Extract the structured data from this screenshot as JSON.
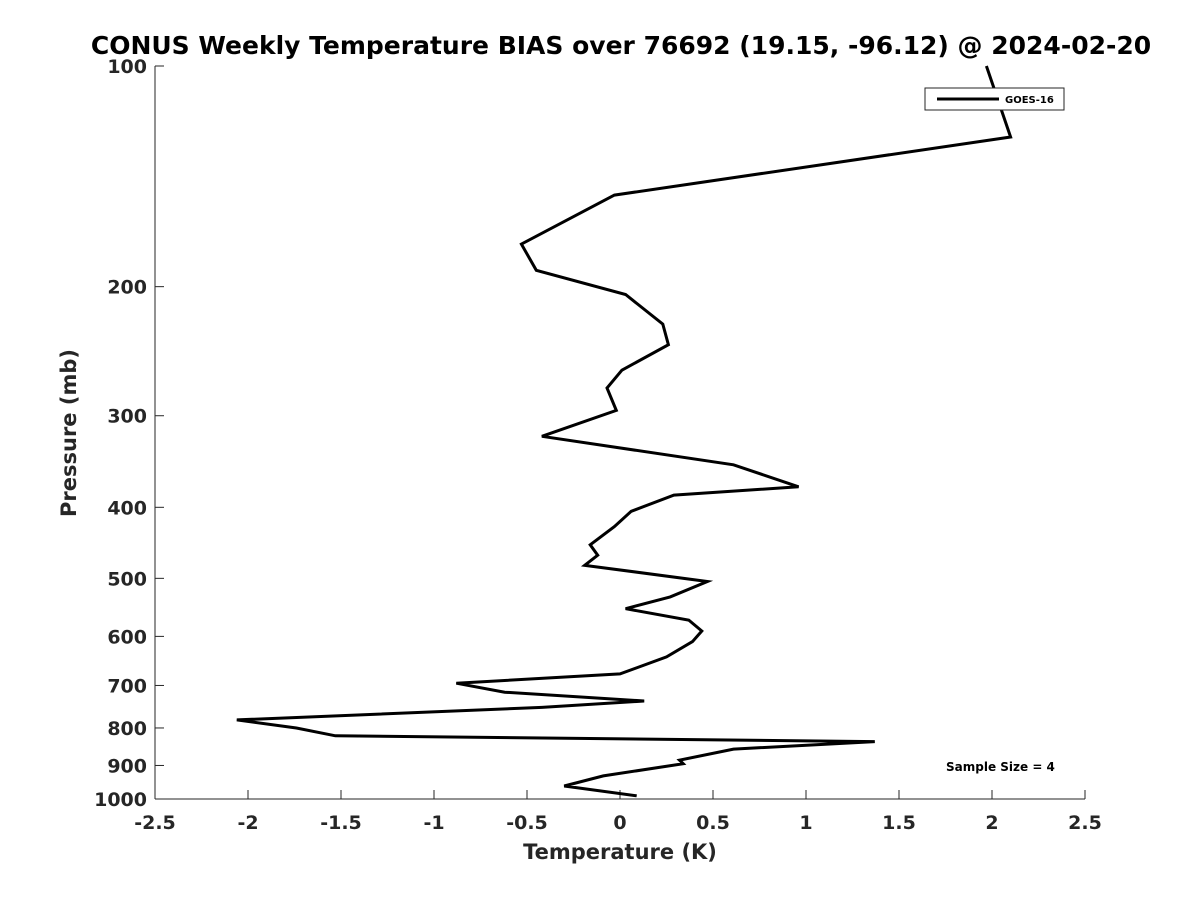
{
  "chart_data": {
    "type": "line",
    "title": "CONUS Weekly Temperature BIAS over 76692 (19.15, -96.12) @ 2024-02-20",
    "xlabel": "Temperature (K)",
    "ylabel": "Pressure (mb)",
    "xlim": [
      -2.5,
      2.5
    ],
    "ylim": [
      100,
      1000
    ],
    "y_scale": "log",
    "y_reversed": true,
    "grid": false,
    "legend_position": "top-right",
    "x_ticks": [
      "-2.5",
      "-2",
      "-1.5",
      "-1",
      "-0.5",
      "0",
      "0.5",
      "1",
      "1.5",
      "2",
      "2.5"
    ],
    "y_ticks": [
      "100",
      "200",
      "300",
      "400",
      "500",
      "600",
      "700",
      "800",
      "900",
      "1000"
    ],
    "annotation": "Sample Size = 4",
    "series": [
      {
        "name": "GOES-16",
        "color": "#000000",
        "x": [
          1.97,
          2.1,
          -0.03,
          -0.53,
          -0.45,
          0.03,
          0.23,
          0.26,
          0.01,
          -0.07,
          -0.02,
          -0.42,
          0.61,
          0.96,
          0.29,
          0.06,
          -0.03,
          -0.16,
          -0.12,
          -0.19,
          0.47,
          0.27,
          0.03,
          0.37,
          0.44,
          0.39,
          0.25,
          0.0,
          -0.88,
          -0.62,
          0.13,
          -0.42,
          -2.06,
          -1.74,
          -1.53,
          1.37,
          0.61,
          0.32,
          0.34,
          -0.09,
          -0.3,
          0.09
        ],
        "y": [
          100,
          125,
          150,
          175,
          190,
          205,
          225,
          240,
          260,
          275,
          295,
          320,
          350,
          375,
          385,
          405,
          425,
          450,
          465,
          480,
          505,
          530,
          550,
          570,
          590,
          610,
          640,
          675,
          695,
          715,
          735,
          750,
          780,
          800,
          820,
          835,
          855,
          885,
          895,
          930,
          960,
          990
        ]
      }
    ]
  }
}
